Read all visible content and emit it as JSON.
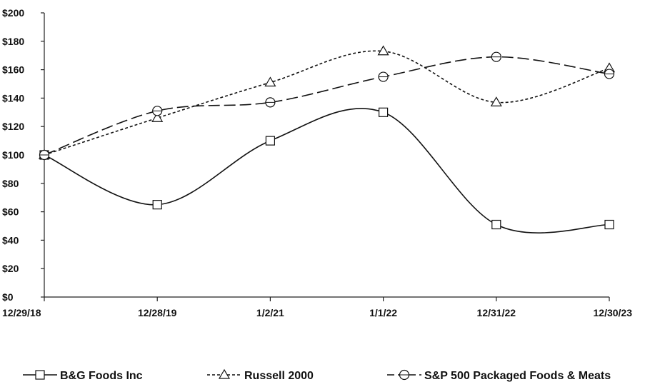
{
  "chart_data": {
    "type": "line",
    "title": "",
    "xlabel": "",
    "ylabel": "",
    "categories": [
      "12/29/18",
      "12/28/19",
      "1/2/21",
      "1/1/22",
      "12/31/22",
      "12/30/23"
    ],
    "ylim": [
      0,
      200
    ],
    "yticks": [
      0,
      20,
      40,
      60,
      80,
      100,
      120,
      140,
      160,
      180,
      200
    ],
    "ytick_labels": [
      "$0",
      "$20",
      "$40",
      "$60",
      "$80",
      "$100",
      "$120",
      "$140",
      "$160",
      "$180",
      "$200"
    ],
    "grid": false,
    "legend_position": "bottom",
    "series": [
      {
        "name": "B&G Foods Inc",
        "values": [
          100,
          65,
          110,
          130,
          51,
          51
        ],
        "dash": "solid",
        "marker": "square"
      },
      {
        "name": "Russell 2000",
        "values": [
          100,
          126,
          151,
          173,
          137,
          161
        ],
        "dash": "dotted",
        "marker": "triangle"
      },
      {
        "name": "S&P 500 Packaged Foods & Meats",
        "values": [
          100,
          131,
          137,
          155,
          169,
          157
        ],
        "dash": "dashed",
        "marker": "circle"
      }
    ]
  }
}
